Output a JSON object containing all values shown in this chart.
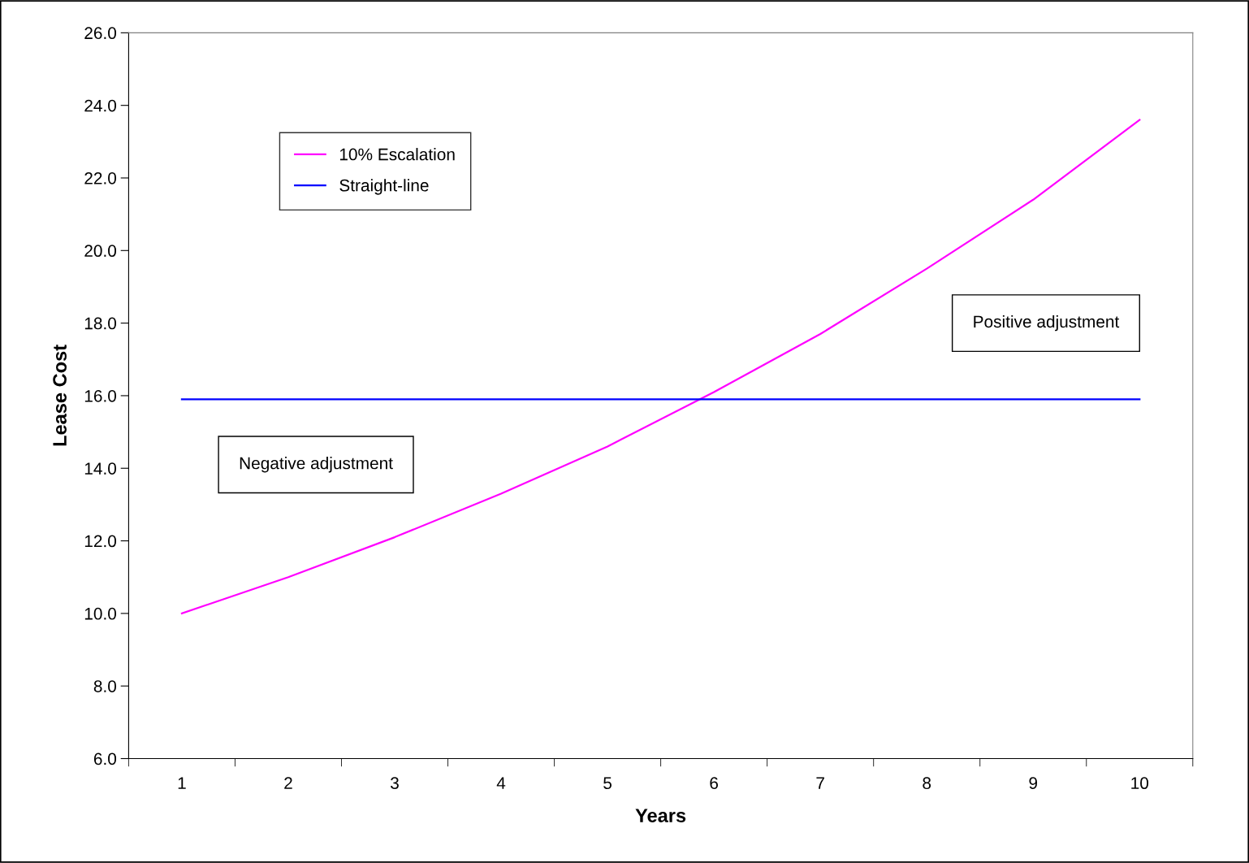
{
  "chart_data": {
    "type": "line",
    "xlabel": "Years",
    "ylabel": "Lease Cost",
    "categories": [
      "1",
      "2",
      "3",
      "4",
      "5",
      "6",
      "7",
      "8",
      "9",
      "10"
    ],
    "series": [
      {
        "name": "10% Escalation",
        "color": "#ff00ff",
        "values": [
          10.0,
          11.0,
          12.1,
          13.3,
          14.6,
          16.1,
          17.7,
          19.5,
          21.4,
          23.6
        ]
      },
      {
        "name": "Straight-line",
        "color": "#0000ff",
        "values": [
          15.9,
          15.9,
          15.9,
          15.9,
          15.9,
          15.9,
          15.9,
          15.9,
          15.9,
          15.9
        ]
      }
    ],
    "ylim": [
      6,
      26
    ],
    "yticks": [
      {
        "value": 6,
        "label": "6.0"
      },
      {
        "value": 8,
        "label": "8.0"
      },
      {
        "value": 10,
        "label": "10.0"
      },
      {
        "value": 12,
        "label": "12.0"
      },
      {
        "value": 14,
        "label": "14.0"
      },
      {
        "value": 16,
        "label": "16.0"
      },
      {
        "value": 18,
        "label": "18.0"
      },
      {
        "value": 20,
        "label": "20.0"
      },
      {
        "value": 22,
        "label": "22.0"
      },
      {
        "value": 24,
        "label": "24.0"
      },
      {
        "value": 26,
        "label": "26.0"
      }
    ],
    "annotations": [
      "Negative adjustment",
      "Positive adjustment"
    ],
    "legend": "top left",
    "grid": false,
    "marker": "none",
    "line_style": "solid"
  }
}
